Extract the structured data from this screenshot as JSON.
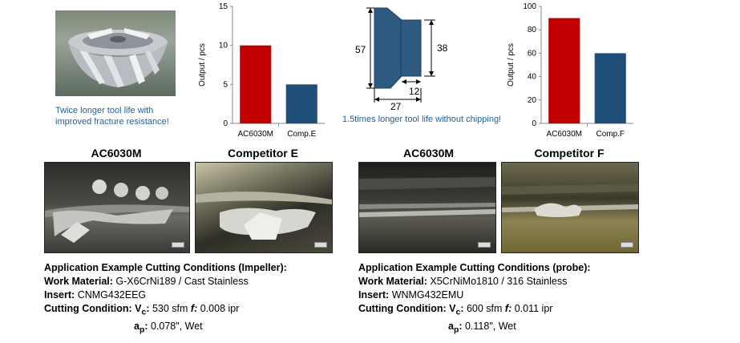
{
  "impeller": {
    "caption_line1": "Twice longer tool life with",
    "caption_line2": "improved fracture resistance!"
  },
  "probe": {
    "caption": "1.5times longer tool life without chipping!",
    "dims": {
      "h1": "57",
      "h2": "38",
      "w1": "27",
      "w2": "12"
    }
  },
  "chart_data": [
    {
      "type": "bar",
      "title": "",
      "ylabel": "Output / pcs",
      "xlabel": "",
      "categories": [
        "AC6030M",
        "Comp.E"
      ],
      "values": [
        10,
        5
      ],
      "colors": [
        "#c00000",
        "#1f4e79"
      ],
      "ylim": [
        0,
        15
      ],
      "yticks": [
        "0",
        "5",
        "10",
        "15"
      ],
      "grid": false
    },
    {
      "type": "bar",
      "title": "",
      "ylabel": "Output / pcs",
      "xlabel": "",
      "categories": [
        "AC6030M",
        "Comp.F"
      ],
      "values": [
        90,
        60
      ],
      "colors": [
        "#c00000",
        "#1f4e79"
      ],
      "ylim": [
        0,
        100
      ],
      "yticks": [
        "0",
        "20",
        "40",
        "60",
        "80",
        "100"
      ],
      "grid": false
    }
  ],
  "photo_labels": {
    "left_a": "AC6030M",
    "left_b": "Competitor E",
    "right_a": "AC6030M",
    "right_b": "Competitor F"
  },
  "conditions_left": {
    "title": "Application Example Cutting Conditions (Impeller):",
    "work_label": "Work Material:",
    "work_value": "G-X6CrNi189 / Cast Stainless",
    "insert_label": "Insert:",
    "insert_value": "CNMG432EEG",
    "cc_label": "Cutting Condition:",
    "vc_sym": "V",
    "vc_sub": "c",
    "vc_value": "530 sfm",
    "f_sym": "f:",
    "f_value": "0.008 ipr",
    "ap_sym": "a",
    "ap_sub": "p",
    "ap_value": "0.078\", Wet"
  },
  "conditions_right": {
    "title": "Application Example Cutting Conditions (probe):",
    "work_label": "Work Material:",
    "work_value": "X5CrNiMo1810 / 316 Stainless",
    "insert_label": "Insert:",
    "insert_value": "WNMG432EMU",
    "cc_label": "Cutting Condition:",
    "vc_sym": "V",
    "vc_sub": "c",
    "vc_value": "600 sfm",
    "f_sym": "f:",
    "f_value": "0.011 ipr",
    "ap_sym": "a",
    "ap_sub": "p",
    "ap_value": "0.118\", Wet"
  }
}
